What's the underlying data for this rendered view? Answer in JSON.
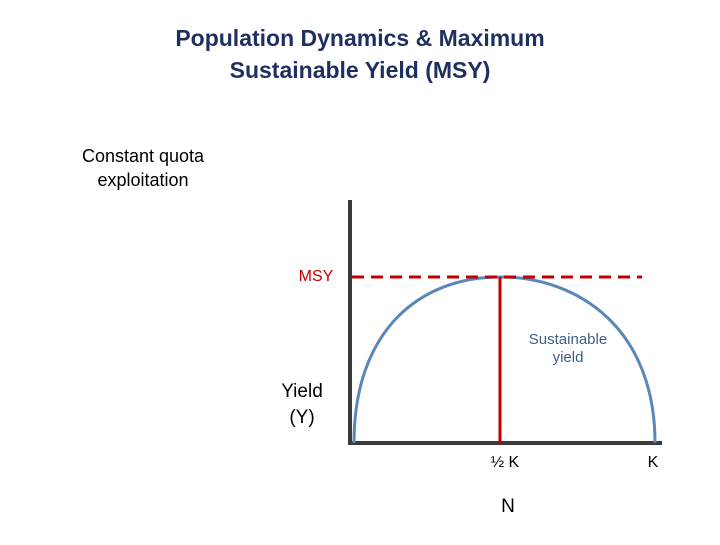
{
  "header": {
    "title_lines": [
      "Population Dynamics & Maximum",
      "Sustainable Yield (MSY)"
    ]
  },
  "subtitle_lines": [
    "Constant quota",
    "exploitation"
  ],
  "diagram": {
    "msy_label": "MSY",
    "curve_label_lines": [
      "Sustainable",
      "yield"
    ],
    "y_axis_label_lines": [
      "Yield",
      "(Y)"
    ],
    "half_k_label": "½ K",
    "k_label": "K",
    "x_axis_label": "N"
  }
}
